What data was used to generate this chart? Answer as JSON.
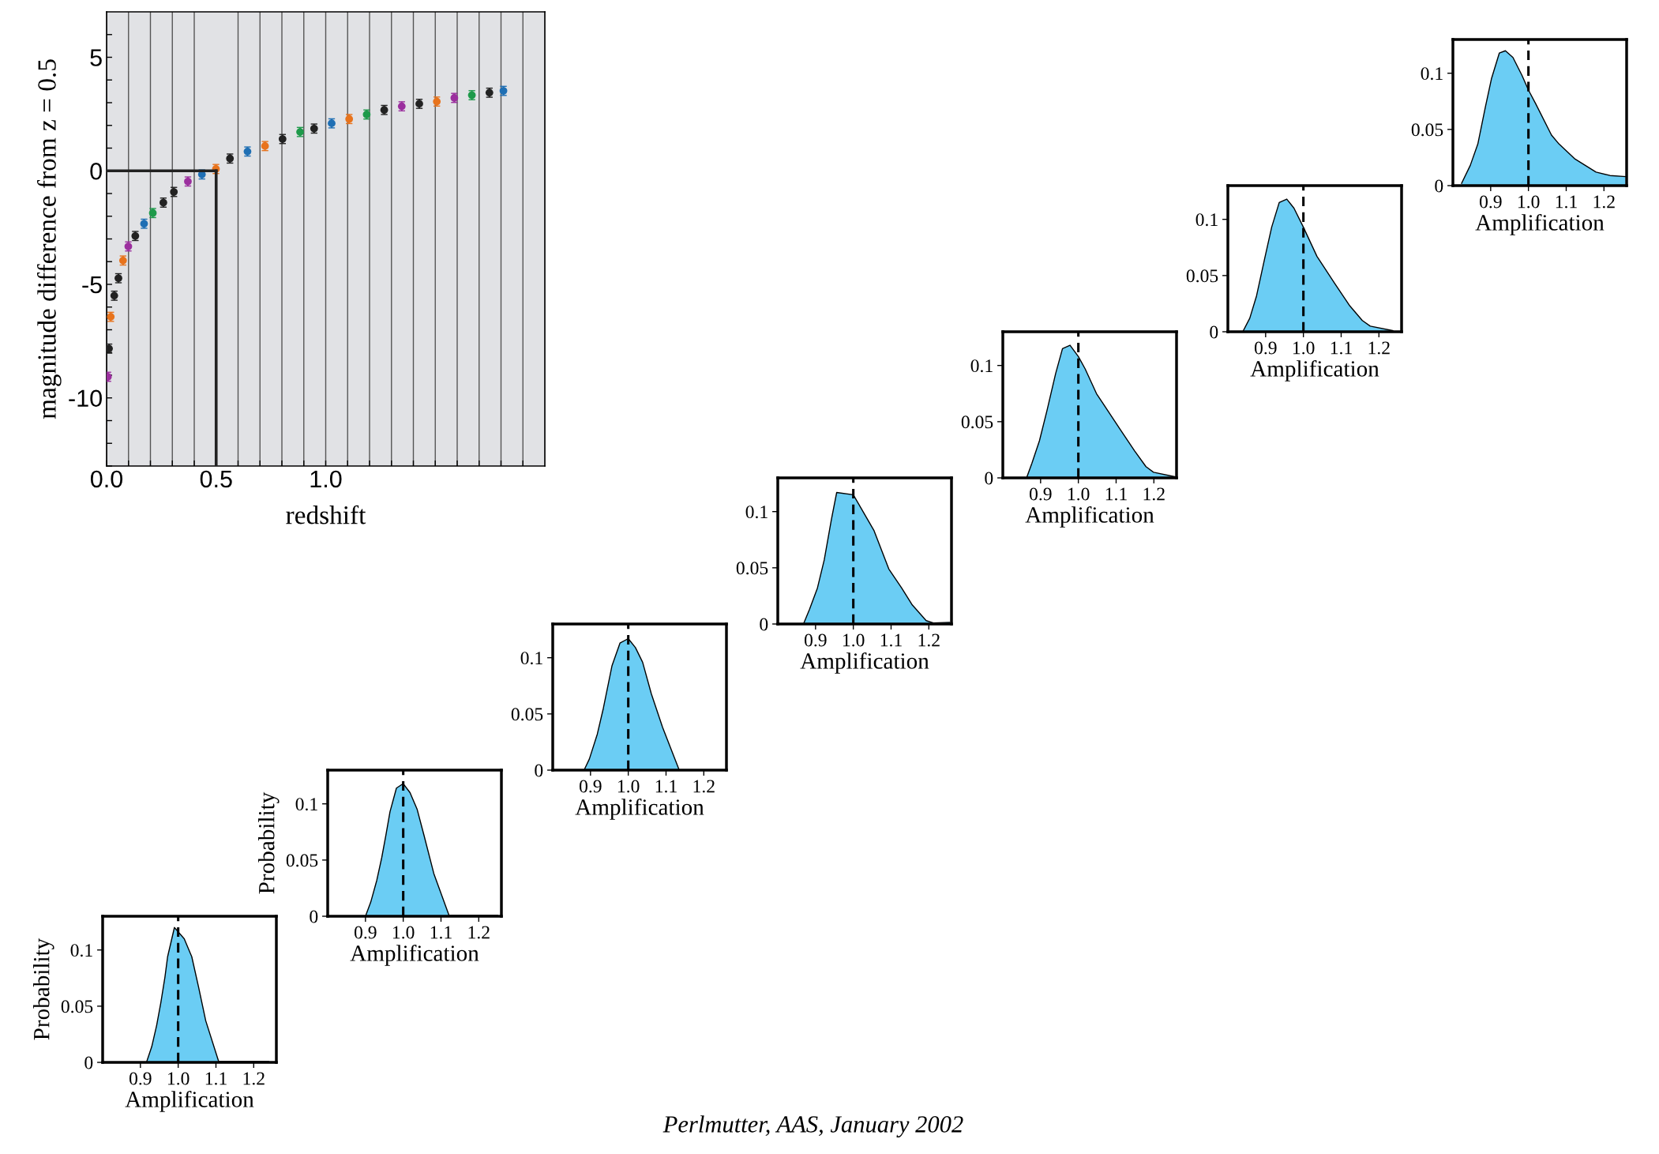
{
  "chart_data": [
    {
      "type": "scatter",
      "xlabel": "redshift",
      "ylabel": "magnitude difference from z = 0.5",
      "marker": "circle",
      "grid": "x",
      "x": [
        0.006,
        0.011,
        0.019,
        0.035,
        0.054,
        0.075,
        0.099,
        0.131,
        0.171,
        0.211,
        0.259,
        0.307,
        0.371,
        0.435,
        0.499,
        0.563,
        0.643,
        0.723,
        0.803,
        0.883,
        0.947,
        1.027,
        1.107,
        1.187,
        1.267,
        1.347,
        1.427,
        1.507,
        1.587,
        1.667,
        1.747,
        1.811
      ],
      "values": [
        -9.07,
        -7.83,
        -6.43,
        -5.5,
        -4.73,
        -3.95,
        -3.33,
        -2.87,
        -2.33,
        -1.86,
        -1.4,
        -0.93,
        -0.47,
        -0.16,
        0.08,
        0.54,
        0.85,
        1.09,
        1.4,
        1.71,
        1.86,
        2.09,
        2.28,
        2.48,
        2.68,
        2.84,
        2.95,
        3.05,
        3.21,
        3.33,
        3.44,
        3.52
      ],
      "errors": [
        0.2,
        0.2,
        0.2,
        0.2,
        0.2,
        0.2,
        0.2,
        0.2,
        0.2,
        0.2,
        0.2,
        0.2,
        0.2,
        0.2,
        0.2,
        0.2,
        0.2,
        0.2,
        0.2,
        0.2,
        0.2,
        0.2,
        0.2,
        0.2,
        0.2,
        0.2,
        0.2,
        0.2,
        0.2,
        0.2,
        0.2,
        0.2
      ],
      "colors": [
        "#9b2f9e",
        "#222222",
        "#e8731c",
        "#222222",
        "#222222",
        "#e8731c",
        "#9b2f9e",
        "#222222",
        "#1f6fb4",
        "#1e9a4a",
        "#222222",
        "#222222",
        "#9b2f9e",
        "#1f6fb4",
        "#e8731c",
        "#222222",
        "#1f6fb4",
        "#e8731c",
        "#222222",
        "#1e9a4a",
        "#222222",
        "#1f6fb4",
        "#e8731c",
        "#1e9a4a",
        "#222222",
        "#9b2f9e",
        "#222222",
        "#e8731c",
        "#9b2f9e",
        "#1e9a4a",
        "#222222",
        "#1f6fb4"
      ],
      "xlim": [
        0,
        2.0
      ],
      "xticks": [
        {
          "value": 0,
          "label": "0.0"
        },
        {
          "value": 0.1,
          "label": null
        },
        {
          "value": 0.2,
          "label": null
        },
        {
          "value": 0.3,
          "label": null
        },
        {
          "value": 0.4,
          "label": null
        },
        0.5,
        {
          "value": 0.6,
          "label": null
        },
        {
          "value": 0.7,
          "label": null
        },
        {
          "value": 0.8,
          "label": null
        },
        {
          "value": 0.9,
          "label": null
        },
        {
          "value": 1,
          "label": "1.0"
        },
        {
          "value": 1.1,
          "label": null
        },
        {
          "value": 1.2,
          "label": null
        },
        {
          "value": 1.3,
          "label": null
        },
        {
          "value": 1.4,
          "label": null
        },
        {
          "value": 1.5,
          "label": null
        },
        {
          "value": 1.6,
          "label": null
        },
        {
          "value": 1.7,
          "label": null
        },
        {
          "value": 1.8,
          "label": null
        },
        {
          "value": 1.9,
          "label": null
        }
      ],
      "ylim": [
        -13,
        7
      ],
      "yticks": [
        {
          "value": -13,
          "label": null
        },
        {
          "value": -12,
          "label": null
        },
        {
          "value": -11,
          "label": null
        },
        -10,
        {
          "value": -9,
          "label": null
        },
        {
          "value": -8,
          "label": null
        },
        {
          "value": -7,
          "label": null
        },
        {
          "value": -6,
          "label": null
        },
        -5,
        {
          "value": -4,
          "label": null
        },
        {
          "value": -3,
          "label": null
        },
        {
          "value": -2,
          "label": null
        },
        {
          "value": -1,
          "label": null
        },
        0,
        {
          "value": 1,
          "label": null
        },
        {
          "value": 2,
          "label": null
        },
        {
          "value": 3,
          "label": null
        },
        {
          "value": 4,
          "label": null
        },
        5,
        {
          "value": 6,
          "label": null
        }
      ],
      "ref_lines": [
        {
          "axis": "y",
          "value": 0,
          "color": "#222222"
        },
        {
          "axis": "x",
          "value": 0.5,
          "color": "#222222"
        }
      ],
      "annotations": [
        "Perlmutter, AAS, January 2002"
      ]
    },
    {
      "type": "area",
      "xlabel": "Amplification",
      "ylabel": "Probability",
      "color": "#6bcdf4",
      "xlim": [
        0.8,
        1.26
      ],
      "ylim": [
        0,
        0.13
      ],
      "xticks": [
        0.9,
        {
          "value": 1,
          "label": "1.0"
        },
        1.1,
        1.2
      ],
      "yticks": [
        0,
        0.05,
        0.1
      ],
      "x": [
        0.916,
        0.93,
        0.943,
        0.954,
        0.965,
        0.972,
        0.99,
        1.016,
        1.036,
        1.054,
        1.073,
        1.107,
        1.24
      ],
      "values": [
        0,
        0.014,
        0.033,
        0.053,
        0.076,
        0.094,
        0.12,
        0.11,
        0.094,
        0.067,
        0.037,
        0.001,
        0.001
      ],
      "ref_lines": [
        {
          "axis": "x",
          "value": 1.0,
          "color": "#000000",
          "line_style": "dashed"
        }
      ]
    },
    {
      "type": "area",
      "xlabel": "Amplification",
      "ylabel": "Probability",
      "color": "#6bcdf4",
      "xlim": [
        0.8,
        1.26
      ],
      "ylim": [
        0,
        0.13
      ],
      "xticks": [
        0.9,
        {
          "value": 1,
          "label": "1.0"
        },
        1.1,
        1.2
      ],
      "yticks": [
        0,
        0.05,
        0.1
      ],
      "x": [
        0.9,
        0.914,
        0.93,
        0.943,
        0.954,
        0.965,
        0.982,
        1.0,
        1.018,
        1.037,
        1.055,
        1.081,
        1.121,
        1.25
      ],
      "values": [
        0,
        0.0126,
        0.032,
        0.052,
        0.072,
        0.093,
        0.114,
        0.118,
        0.11,
        0.095,
        0.072,
        0.038,
        0.001,
        0.001
      ],
      "ref_lines": [
        {
          "axis": "x",
          "value": 1.0,
          "color": "#000000",
          "line_style": "dashed"
        }
      ]
    },
    {
      "type": "area",
      "xlabel": "Amplification",
      "color": "#6bcdf4",
      "xlim": [
        0.8,
        1.26
      ],
      "ylim": [
        0,
        0.13
      ],
      "xticks": [
        0.9,
        {
          "value": 1,
          "label": "1.0"
        },
        1.1,
        1.2
      ],
      "yticks": [
        0,
        0.05,
        0.1
      ],
      "x": [
        0.883,
        0.897,
        0.918,
        0.934,
        0.957,
        0.978,
        1.0,
        1.019,
        1.038,
        1.061,
        1.091,
        1.135,
        1.25
      ],
      "values": [
        0,
        0.0099,
        0.032,
        0.055,
        0.093,
        0.113,
        0.117,
        0.109,
        0.096,
        0.068,
        0.038,
        0,
        0
      ],
      "ref_lines": [
        {
          "axis": "x",
          "value": 1.0,
          "color": "#000000",
          "line_style": "dashed"
        }
      ]
    },
    {
      "type": "area",
      "xlabel": "Amplification",
      "color": "#6bcdf4",
      "xlim": [
        0.8,
        1.26
      ],
      "ylim": [
        0,
        0.13
      ],
      "xticks": [
        0.9,
        {
          "value": 1,
          "label": "1.0"
        },
        1.1,
        1.2
      ],
      "yticks": [
        0,
        0.05,
        0.1
      ],
      "x": [
        0.868,
        0.884,
        0.905,
        0.923,
        0.942,
        0.956,
        1.0,
        1.055,
        1.094,
        1.128,
        1.156,
        1.193,
        1.212,
        1.255
      ],
      "values": [
        0,
        0.013,
        0.032,
        0.057,
        0.093,
        0.117,
        0.115,
        0.083,
        0.049,
        0.032,
        0.017,
        0.003,
        0.001,
        0.0015
      ],
      "ref_lines": [
        {
          "axis": "x",
          "value": 1.0,
          "color": "#000000",
          "line_style": "dashed"
        }
      ]
    },
    {
      "type": "area",
      "xlabel": "Amplification",
      "color": "#6bcdf4",
      "xlim": [
        0.8,
        1.26
      ],
      "ylim": [
        0,
        0.13
      ],
      "xticks": [
        0.9,
        {
          "value": 1,
          "label": "1.0"
        },
        1.1,
        1.2
      ],
      "yticks": [
        0,
        0.05,
        0.1
      ],
      "x": [
        0.864,
        0.877,
        0.897,
        0.917,
        0.94,
        0.958,
        0.978,
        1.0,
        1.018,
        1.048,
        1.109,
        1.149,
        1.179,
        1.199,
        1.256
      ],
      "values": [
        0.001,
        0.013,
        0.033,
        0.06,
        0.093,
        0.115,
        0.118,
        0.108,
        0.097,
        0.075,
        0.044,
        0.024,
        0.01,
        0.005,
        0.001
      ],
      "ref_lines": [
        {
          "axis": "x",
          "value": 1.0,
          "color": "#000000",
          "line_style": "dashed"
        }
      ]
    },
    {
      "type": "area",
      "xlabel": "Amplification",
      "color": "#6bcdf4",
      "xlim": [
        0.8,
        1.26
      ],
      "ylim": [
        0,
        0.13
      ],
      "xticks": [
        0.9,
        {
          "value": 1,
          "label": "1.0"
        },
        1.1,
        1.2
      ],
      "yticks": [
        0,
        0.05,
        0.1
      ],
      "x": [
        0.841,
        0.858,
        0.876,
        0.898,
        0.916,
        0.936,
        0.956,
        0.975,
        1.0,
        1.036,
        1.083,
        1.123,
        1.156,
        1.177,
        1.237
      ],
      "values": [
        0.001,
        0.012,
        0.032,
        0.066,
        0.093,
        0.115,
        0.118,
        0.11,
        0.093,
        0.067,
        0.043,
        0.023,
        0.01,
        0.005,
        0.001
      ],
      "ref_lines": [
        {
          "axis": "x",
          "value": 1.0,
          "color": "#000000",
          "line_style": "dashed"
        }
      ]
    },
    {
      "type": "area",
      "xlabel": "Amplification",
      "color": "#6bcdf4",
      "xlim": [
        0.8,
        1.26
      ],
      "ylim": [
        0,
        0.13
      ],
      "xticks": [
        0.9,
        {
          "value": 1,
          "label": "1.0"
        },
        1.1,
        1.2
      ],
      "yticks": [
        0,
        0.05,
        0.1
      ],
      "x": [
        0.823,
        0.846,
        0.866,
        0.886,
        0.902,
        0.923,
        0.939,
        0.959,
        0.983,
        1.0,
        1.019,
        1.061,
        1.081,
        1.122,
        1.179,
        1.216,
        1.257
      ],
      "values": [
        0.002,
        0.018,
        0.037,
        0.07,
        0.095,
        0.118,
        0.12,
        0.114,
        0.098,
        0.085,
        0.073,
        0.045,
        0.037,
        0.024,
        0.012,
        0.009,
        0.008
      ],
      "ref_lines": [
        {
          "axis": "x",
          "value": 1.0,
          "color": "#000000",
          "line_style": "dashed"
        }
      ]
    }
  ]
}
